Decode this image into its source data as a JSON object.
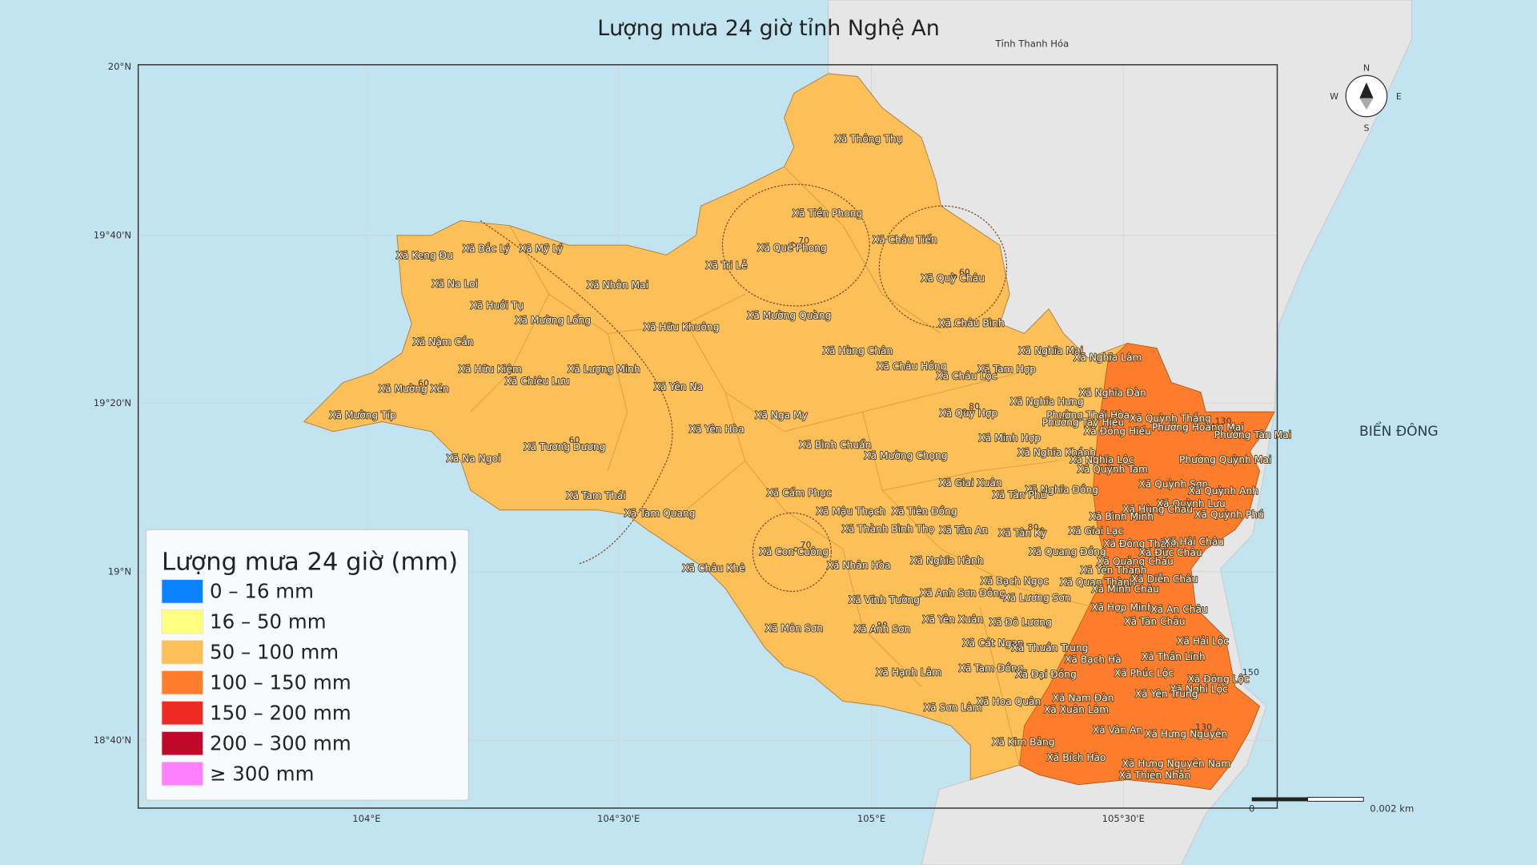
{
  "title": "Lượng mưa 24 giờ tỉnh Nghệ An",
  "neighbor_label": "Tỉnh Thanh Hóa",
  "sea_label": "BIỂN ĐÔNG",
  "latitude_labels": [
    "20°N",
    "19°40'N",
    "19°20'N",
    "19°N",
    "18°40'N"
  ],
  "longitude_labels": [
    "104°E",
    "104°30'E",
    "105°E",
    "105°30'E"
  ],
  "legend": {
    "title": "Lượng mưa 24 giờ (mm)",
    "items": [
      {
        "label": "0 – 16 mm",
        "color": "#0a82ff"
      },
      {
        "label": "16 – 50 mm",
        "color": "#ffff80"
      },
      {
        "label": "50 – 100 mm",
        "color": "#fdbf58"
      },
      {
        "label": "100 – 150 mm",
        "color": "#fd7d2c"
      },
      {
        "label": "150 – 200 mm",
        "color": "#ee2a22"
      },
      {
        "label": "200 – 300 mm",
        "color": "#c0082a"
      },
      {
        "label": "≥ 300 mm",
        "color": "#ff80ff"
      }
    ]
  },
  "compass": {
    "n": "N",
    "e": "E",
    "s": "S",
    "w": "W"
  },
  "scale_bar": {
    "start": "0",
    "end": "0.002 km"
  },
  "places": [
    "Xã Thông Thụ",
    "Xã Tiền Phong",
    "Xã Quế Phong",
    "Xã Châu Tiến",
    "Xã Tri Lễ",
    "Xã Quỳ Châu",
    "Xã Mường Quàng",
    "Xã Châu Bình",
    "Xã Keng Đu",
    "Xã Bắc Lý",
    "Xã Mỹ Lý",
    "Xã Na Loi",
    "Xã Nhôn Mai",
    "Xã Huồi Tụ",
    "Xã Mường Lống",
    "Xã Hữu Khuông",
    "Xã Nậm Cắn",
    "Xã Hùng Chân",
    "Xã Nghĩa Mai",
    "Xã Nghĩa Lâm",
    "Xã Hữu Kiệm",
    "Xã Lượng Minh",
    "Xã Châu Hồng",
    "Xã Tam Hợp",
    "Xã Châu Lộc",
    "Xã Chiêu Lưu",
    "Xã Mường Xén",
    "Xã Yên Na",
    "Xã Nghĩa Đàn",
    "Xã Nghĩa Hưng",
    "Xã Mường Típ",
    "Xã Nga My",
    "Xã Quỳ Hợp",
    "Phường Thái Hòa",
    "Xã Quỳnh Thắng",
    "Phường Hoàng Mai",
    "Phường Tân Mai",
    "Xã Yên Hòa",
    "Phường Tây Hiếu",
    "Xã Đông Hiếu",
    "Xã Minh Hợp",
    "Xã Bình Chuẩn",
    "Xã Tương Dương",
    "Xã Mường Chọng",
    "Xã Nghĩa Khánh",
    "Xã Nghĩa Lộc",
    "Phường Quỳnh Mai",
    "Xã Na Ngoi",
    "Xã Quỳnh Tam",
    "Xã Giai Xuân",
    "Xã Quỳnh Sơn",
    "Xã Nghĩa Đồng",
    "Xã Cẩm Phục",
    "Xã Tân Phú",
    "Xã Quỳnh Anh",
    "Xã Tam Thái",
    "Xã Quỳnh Lưu",
    "Xã Hùng Châu",
    "Xã Mậu Thạch",
    "Xã Tiên Đồng",
    "Xã Tam Quang",
    "Xã Bình Minh",
    "Xã Quỳnh Phú",
    "Xã Thành Bình Thọ",
    "Xã Tân An",
    "Xã Tân Kỳ",
    "Xã Giai Lạc",
    "Xã Đông Thành",
    "Xã Hải Châu",
    "Xã Con Cuông",
    "Xã Quang Đồng",
    "Xã Đức Châu",
    "Xã Nghĩa Hành",
    "Xã Nhân Hòa",
    "Xã Quảng Châu",
    "Xã Châu Khê",
    "Xã Yên Thành",
    "Xã Bạch Ngọc",
    "Xã Quan Thành",
    "Xã Diễn Châu",
    "Xã Minh Châu",
    "Xã Anh Sơn Đông",
    "Xã Lương Sơn",
    "Xã Vĩnh Tường",
    "Xã Hợp Minh",
    "Xã An Châu",
    "Xã Yên Xuân",
    "Xã Tân Châu",
    "Xã Đô Lương",
    "Xã Môn Sơn",
    "Xã Anh Sơn",
    "Xã Hải Lộc",
    "Xã Cát Ngạn",
    "Xã Thuần Trung",
    "Xã Thần Lĩnh",
    "Xã Bạch Hà",
    "Xã Hạnh Lâm",
    "Xã Tam Đồng",
    "Xã Phúc Lộc",
    "Xã Đại Đồng",
    "Xã Đông Lộc",
    "Xã Nghi Lộc",
    "Xã Yên Trung",
    "Xã Nam Đàn",
    "Xã Hoa Quân",
    "Xã Xuân Lâm",
    "Xã Sơn Lâm",
    "Xã Vân An",
    "Xã Hưng Nguyên",
    "Xã Kim Bảng",
    "Xã Bích Hào",
    "Xã Hưng Nguyên Nam",
    "Xã Thiên Nhẫn"
  ],
  "isohyet_labels": [
    "70",
    "70",
    "60",
    "60",
    "60",
    "80",
    "80",
    "90",
    "130",
    "150",
    "130"
  ]
}
